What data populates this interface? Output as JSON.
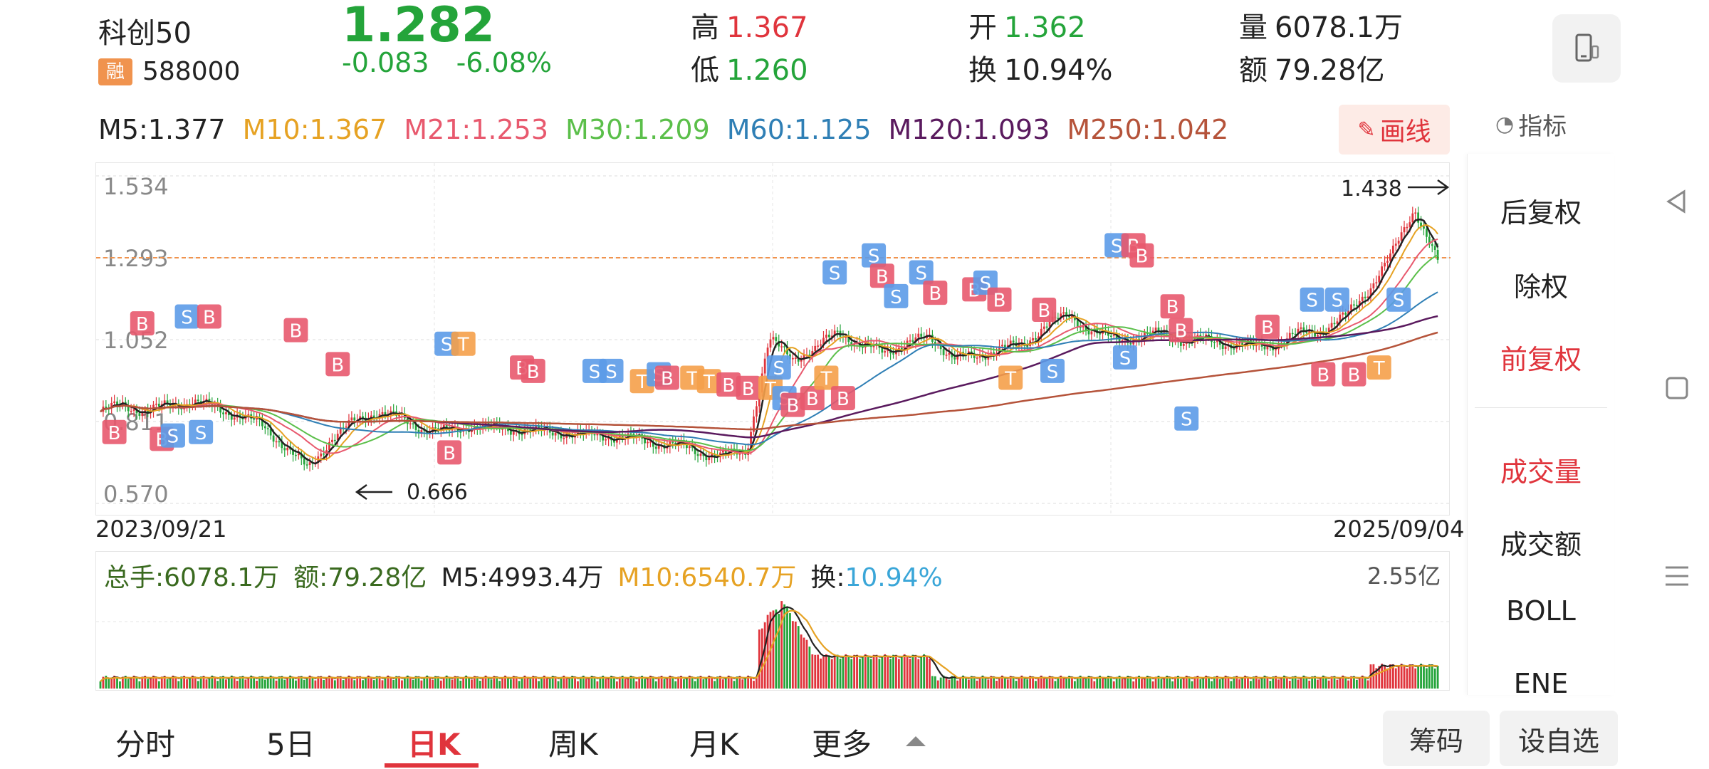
{
  "header": {
    "name": "科创50",
    "badge": "融",
    "code": "588000",
    "price": "1.282",
    "change": "-0.083",
    "change_pct": "-6.08%",
    "high_label": "高",
    "high": "1.367",
    "low_label": "低",
    "low": "1.260",
    "open_label": "开",
    "open": "1.362",
    "turnover_label": "换",
    "turnover": "10.94%",
    "volume_label": "量",
    "volume": "6078.1万",
    "amount_label": "额",
    "amount": "79.28亿",
    "device_icon": "device-switch-icon"
  },
  "ma_row": [
    {
      "text": "M5:1.377",
      "color": "#222222"
    },
    {
      "text": "M10:1.367",
      "color": "#e6a223"
    },
    {
      "text": "M21:1.253",
      "color": "#e8596e"
    },
    {
      "text": "M30:1.209",
      "color": "#5bbf4a"
    },
    {
      "text": "M60:1.125",
      "color": "#2f7fb5"
    },
    {
      "text": "M120:1.093",
      "color": "#5a1a5e"
    },
    {
      "text": "M250:1.042",
      "color": "#b5533a"
    }
  ],
  "draw_button": "画线",
  "indicator_label": "指标",
  "side_panel": {
    "items": [
      {
        "label": "后复权",
        "active": false
      },
      {
        "label": "除权",
        "active": false
      },
      {
        "label": "前复权",
        "active": true
      },
      {
        "label": "成交量",
        "active": true
      },
      {
        "label": "成交额",
        "active": false
      },
      {
        "label": "BOLL",
        "active": false
      },
      {
        "label": "ENE",
        "active": false
      }
    ]
  },
  "chart": {
    "y_ticks": [
      "1.534",
      "1.293",
      "1.052",
      "0.811",
      "0.570"
    ],
    "ylim": [
      0.57,
      1.534
    ],
    "start_date": "2023/09/21",
    "end_date": "2025/09/04",
    "max_label": "1.438",
    "min_label": "0.666",
    "last_price_line": 1.293
  },
  "chart_data": {
    "type": "candlestick",
    "x_range": [
      "2023/09/21",
      "2025/09/04"
    ],
    "ylim": [
      0.57,
      1.534
    ],
    "close_trend": [
      0.84,
      0.86,
      0.84,
      0.86,
      0.87,
      0.85,
      0.83,
      0.8,
      0.74,
      0.67,
      0.76,
      0.81,
      0.84,
      0.82,
      0.79,
      0.78,
      0.8,
      0.79,
      0.79,
      0.78,
      0.78,
      0.77,
      0.77,
      0.76,
      0.75,
      0.74,
      0.72,
      0.71,
      0.72,
      1.05,
      1.0,
      1.02,
      1.08,
      1.03,
      1.02,
      1.04,
      1.06,
      1.0,
      1.0,
      1.03,
      1.03,
      1.1,
      1.12,
      1.08,
      1.05,
      1.06,
      1.07,
      1.05,
      1.05,
      1.04,
      1.03,
      1.04,
      1.07,
      1.08,
      1.12,
      1.2,
      1.3,
      1.44,
      1.28
    ],
    "volume_label_max": "2.55亿"
  },
  "volume_row": [
    {
      "text": "总手:6078.1万",
      "color": "#3a6a1f"
    },
    {
      "text": "额:79.28亿",
      "color": "#3a6a1f"
    },
    {
      "text": "M5:4993.4万",
      "color": "#222222"
    },
    {
      "text": "M10:6540.7万",
      "color": "#e6a223"
    },
    {
      "text": "换:",
      "color": "#222222"
    },
    {
      "text": "10.94%",
      "color": "#3aa6d8"
    }
  ],
  "volume_max": "2.55亿",
  "tabs": [
    {
      "label": "分时",
      "active": false
    },
    {
      "label": "5日",
      "active": false
    },
    {
      "label": "日K",
      "active": true
    },
    {
      "label": "周K",
      "active": false
    },
    {
      "label": "月K",
      "active": false
    },
    {
      "label": "更多",
      "active": false
    }
  ],
  "buttons": {
    "chips": "筹码",
    "add_watch": "设自选"
  },
  "colors": {
    "up": "#e0343c",
    "down": "#24a43a",
    "buy_marker": "#e8596e",
    "sell_marker": "#5c9be8",
    "t_marker": "#f5a04a"
  }
}
